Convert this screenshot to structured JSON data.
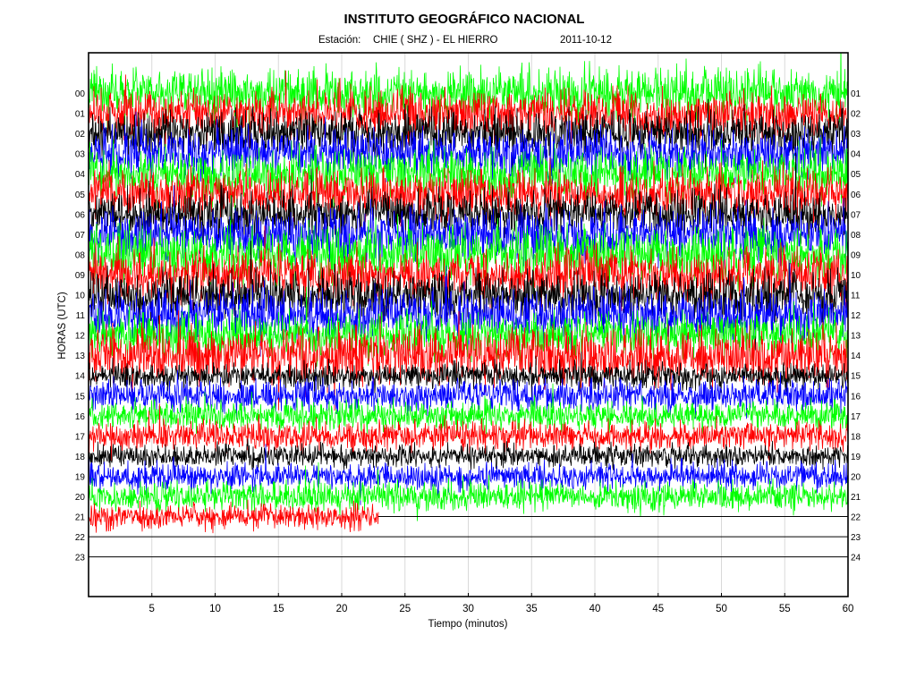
{
  "chart_data": {
    "type": "line",
    "title": "INSTITUTO GEOGRÁFICO NACIONAL",
    "station_label": "Estación:",
    "station": "CHIE ( SHZ ) - EL HIERRO",
    "date": "2011-10-12",
    "xlabel": "Tiempo (minutos)",
    "ylabel": "HORAS (UTC)",
    "xlim": [
      0,
      60
    ],
    "x_ticks": [
      "5",
      "10",
      "15",
      "20",
      "25",
      "30",
      "35",
      "40",
      "45",
      "50",
      "55",
      "60"
    ],
    "left_ticks": [
      "00",
      "01",
      "02",
      "03",
      "04",
      "05",
      "06",
      "07",
      "08",
      "09",
      "10",
      "11",
      "12",
      "13",
      "14",
      "15",
      "16",
      "17",
      "18",
      "19",
      "20",
      "21",
      "22",
      "23"
    ],
    "right_ticks": [
      "01",
      "02",
      "03",
      "04",
      "05",
      "06",
      "07",
      "08",
      "09",
      "10",
      "11",
      "12",
      "13",
      "14",
      "15",
      "16",
      "17",
      "18",
      "19",
      "20",
      "21",
      "22",
      "23",
      "24"
    ],
    "grid": true,
    "trace_colors": [
      "#00ff00",
      "#ff0000",
      "#000000",
      "#0000ff"
    ],
    "series": [
      {
        "hour": "00",
        "color": "#00ff00",
        "end_minute": 60,
        "amplitude": 1.6
      },
      {
        "hour": "01",
        "color": "#ff0000",
        "end_minute": 60,
        "amplitude": 1.5
      },
      {
        "hour": "02",
        "color": "#000000",
        "end_minute": 60,
        "amplitude": 1.4
      },
      {
        "hour": "03",
        "color": "#0000ff",
        "end_minute": 60,
        "amplitude": 1.5
      },
      {
        "hour": "04",
        "color": "#00ff00",
        "end_minute": 60,
        "amplitude": 1.6
      },
      {
        "hour": "05",
        "color": "#ff0000",
        "end_minute": 60,
        "amplitude": 1.5
      },
      {
        "hour": "06",
        "color": "#000000",
        "end_minute": 60,
        "amplitude": 1.4
      },
      {
        "hour": "07",
        "color": "#0000ff",
        "end_minute": 60,
        "amplitude": 1.6
      },
      {
        "hour": "08",
        "color": "#00ff00",
        "end_minute": 60,
        "amplitude": 1.7
      },
      {
        "hour": "09",
        "color": "#ff0000",
        "end_minute": 60,
        "amplitude": 1.6
      },
      {
        "hour": "10",
        "color": "#000000",
        "end_minute": 60,
        "amplitude": 1.5
      },
      {
        "hour": "11",
        "color": "#0000ff",
        "end_minute": 60,
        "amplitude": 1.6
      },
      {
        "hour": "12",
        "color": "#00ff00",
        "end_minute": 60,
        "amplitude": 1.4
      },
      {
        "hour": "13",
        "color": "#ff0000",
        "end_minute": 60,
        "amplitude": 1.8
      },
      {
        "hour": "14",
        "color": "#000000",
        "end_minute": 60,
        "amplitude": 0.8
      },
      {
        "hour": "15",
        "color": "#0000ff",
        "end_minute": 60,
        "amplitude": 1.0
      },
      {
        "hour": "16",
        "color": "#00ff00",
        "end_minute": 60,
        "amplitude": 0.9
      },
      {
        "hour": "17",
        "color": "#ff0000",
        "end_minute": 60,
        "amplitude": 0.9
      },
      {
        "hour": "18",
        "color": "#000000",
        "end_minute": 60,
        "amplitude": 0.7
      },
      {
        "hour": "19",
        "color": "#0000ff",
        "end_minute": 60,
        "amplitude": 0.8
      },
      {
        "hour": "20",
        "color": "#00ff00",
        "end_minute": 60,
        "amplitude": 0.9
      },
      {
        "hour": "21",
        "color": "#ff0000",
        "end_minute": 22.9,
        "amplitude": 0.8
      },
      {
        "hour": "22",
        "color": "#000000",
        "end_minute": 0,
        "amplitude": 0
      },
      {
        "hour": "23",
        "color": "#000000",
        "end_minute": 0,
        "amplitude": 0
      }
    ]
  }
}
